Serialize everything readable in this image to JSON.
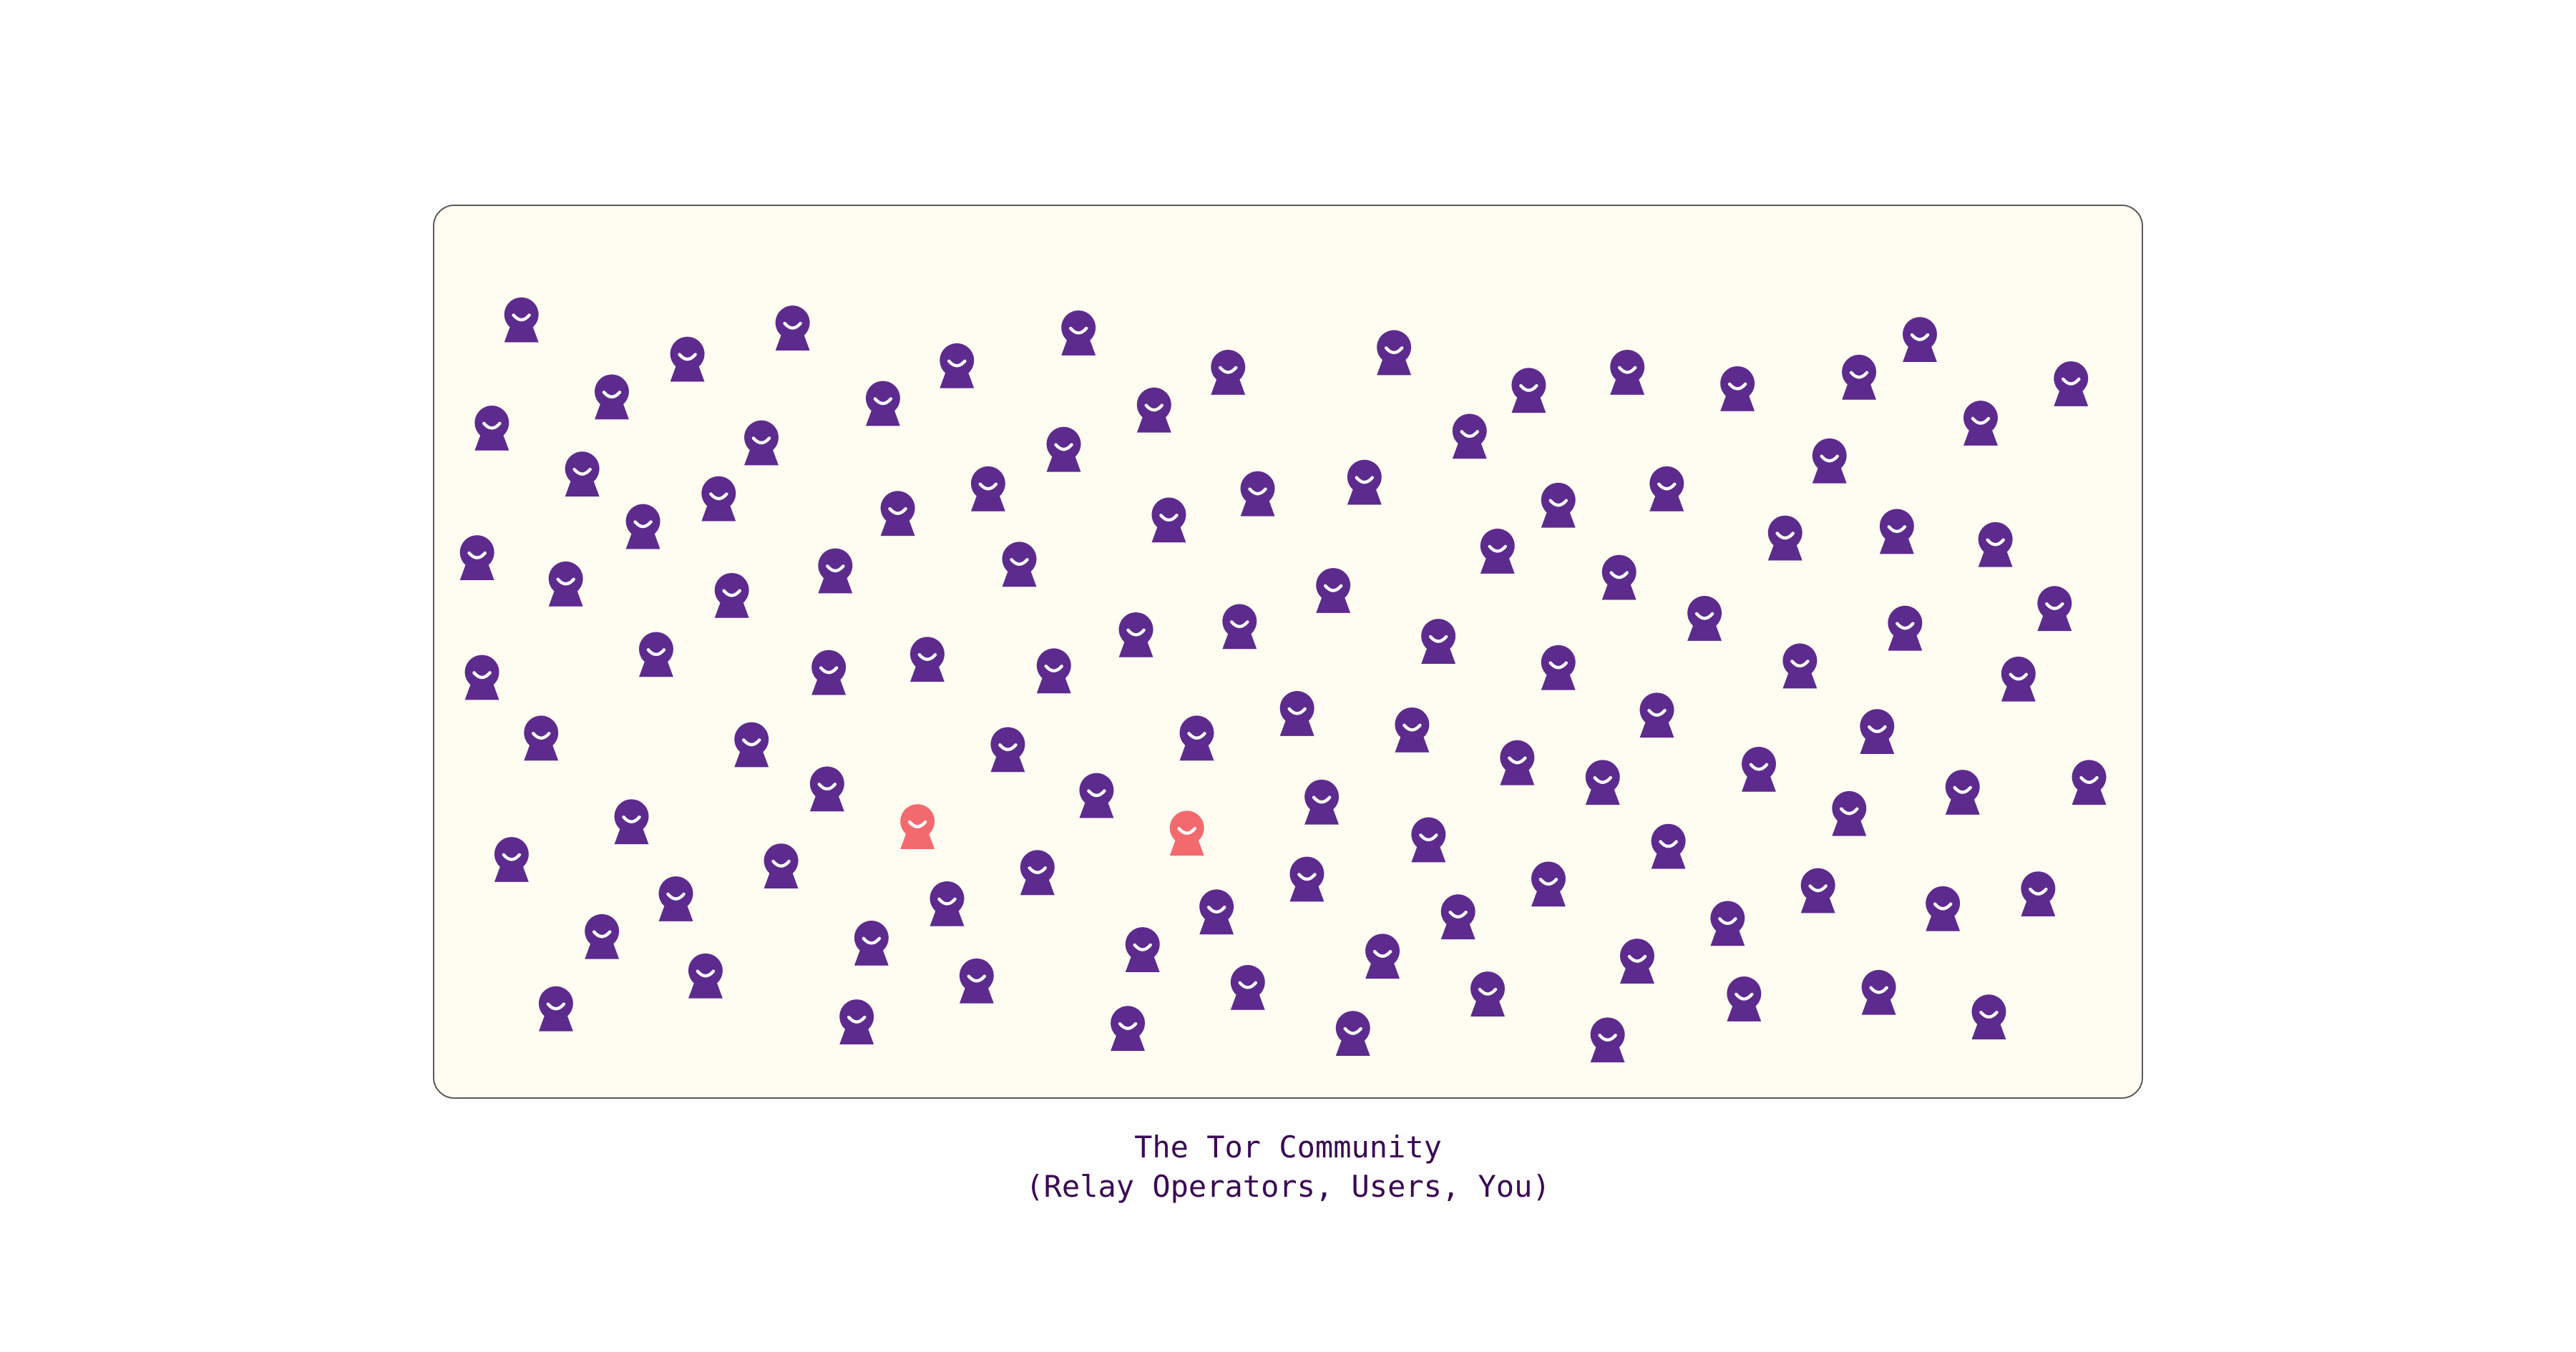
{
  "caption": {
    "title": "The Tor Community",
    "subtitle": "(Relay Operators, Users, You)"
  },
  "colors": {
    "page_background": "#fefefe",
    "panel_background": "#fffcf1",
    "panel_border": "#5a5a5a",
    "person_default": "#5d2a8e",
    "person_highlight": "#f26a6e",
    "face": "#ffffff",
    "caption_text": "#3b0a55"
  },
  "people": {
    "icon": "person-icon",
    "default_count": 114,
    "highlighted_count": 2
  }
}
